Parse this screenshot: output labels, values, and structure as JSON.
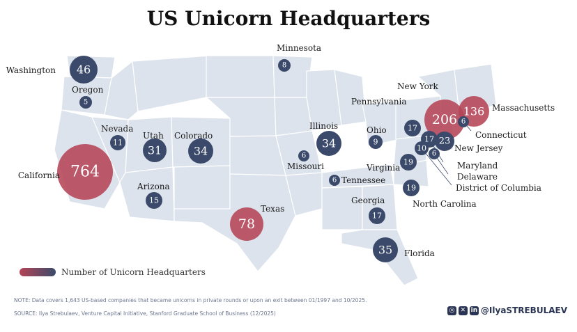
{
  "title": "US Unicorn Headquarters",
  "legend_label": "Number of Unicorn Headquarters",
  "note": "NOTE: Data covers 1,643 US-based companies that became unicorns in private rounds or upon an exit between 01/1997 and 10/2025.",
  "source": "SOURCE: Ilya Strebulaev, Venture Capital Initiative, Stanford Graduate School of Business (12/2025)",
  "handle": "@IlyaSTREBULAEV",
  "social_icons": [
    "instagram-icon",
    "x-icon",
    "linkedin-icon"
  ],
  "colors": {
    "high": "#b54457",
    "low": "#3b4a6b",
    "map_fill": "#dce3ec"
  },
  "states": [
    {
      "name": "California",
      "value": 764
    },
    {
      "name": "New York",
      "value": 206
    },
    {
      "name": "Massachusetts",
      "value": 136
    },
    {
      "name": "Texas",
      "value": 78
    },
    {
      "name": "Washington",
      "value": 46
    },
    {
      "name": "Florida",
      "value": 35
    },
    {
      "name": "Colorado",
      "value": 34
    },
    {
      "name": "Illinois",
      "value": 34
    },
    {
      "name": "Utah",
      "value": 31
    },
    {
      "name": "New Jersey",
      "value": 23
    },
    {
      "name": "Virginia",
      "value": 19
    },
    {
      "name": "North Carolina",
      "value": 19
    },
    {
      "name": "Pennsylvania",
      "value": 17
    },
    {
      "name": "Georgia",
      "value": 17
    },
    {
      "name": "Maryland",
      "value": 17
    },
    {
      "name": "Arizona",
      "value": 15
    },
    {
      "name": "Nevada",
      "value": 11
    },
    {
      "name": "District of Columbia",
      "value": 10
    },
    {
      "name": "Ohio",
      "value": 9
    },
    {
      "name": "Minnesota",
      "value": 8
    },
    {
      "name": "Connecticut",
      "value": 6
    },
    {
      "name": "Missouri",
      "value": 6
    },
    {
      "name": "Tennessee",
      "value": 6
    },
    {
      "name": "Delaware",
      "value": 6
    },
    {
      "name": "Oregon",
      "value": 5
    }
  ]
}
